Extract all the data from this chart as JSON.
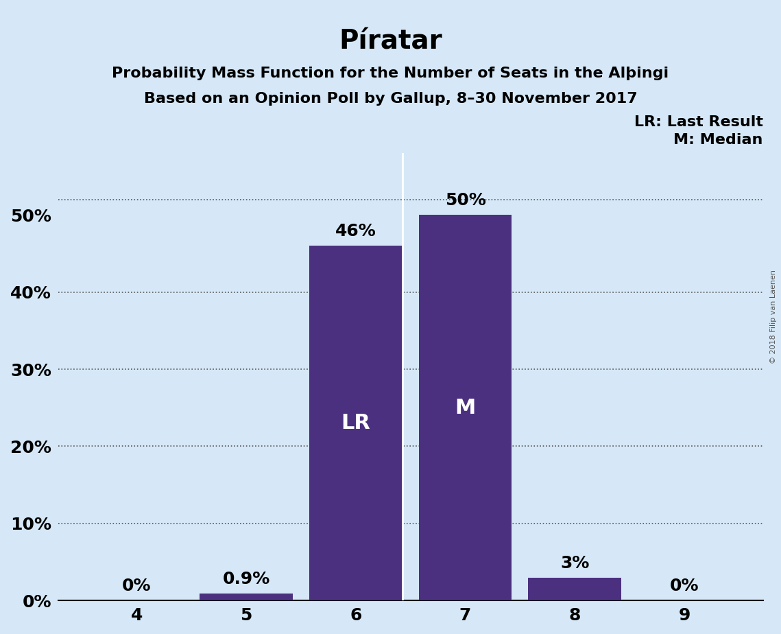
{
  "title": "Píratar",
  "subtitle1": "Probability Mass Function for the Number of Seats in the Alþingi",
  "subtitle2": "Based on an Opinion Poll by Gallup, 8–30 November 2017",
  "categories": [
    4,
    5,
    6,
    7,
    8,
    9
  ],
  "values": [
    0.0,
    0.9,
    46.0,
    50.0,
    3.0,
    0.0
  ],
  "bar_color": "#4b3080",
  "background_color": "#d6e8f7",
  "ylabel_ticks": [
    0,
    10,
    20,
    30,
    40,
    50
  ],
  "ylim": [
    0,
    58
  ],
  "bar_labels": [
    "0%",
    "0.9%",
    "46%",
    "50%",
    "3%",
    "0%"
  ],
  "lr_bar_index": 2,
  "median_bar_index": 3,
  "lr_label": "LR",
  "median_label": "M",
  "legend_lr": "LR: Last Result",
  "legend_m": "M: Median",
  "copyright": "© 2018 Filip van Laenen",
  "title_fontsize": 28,
  "subtitle_fontsize": 16,
  "axis_tick_fontsize": 18,
  "bar_label_fontsize": 18,
  "bar_inner_label_fontsize": 22,
  "legend_fontsize": 16,
  "divider_color": "#ffffff",
  "grid_color": "#555555",
  "dotted_line_y": 52
}
